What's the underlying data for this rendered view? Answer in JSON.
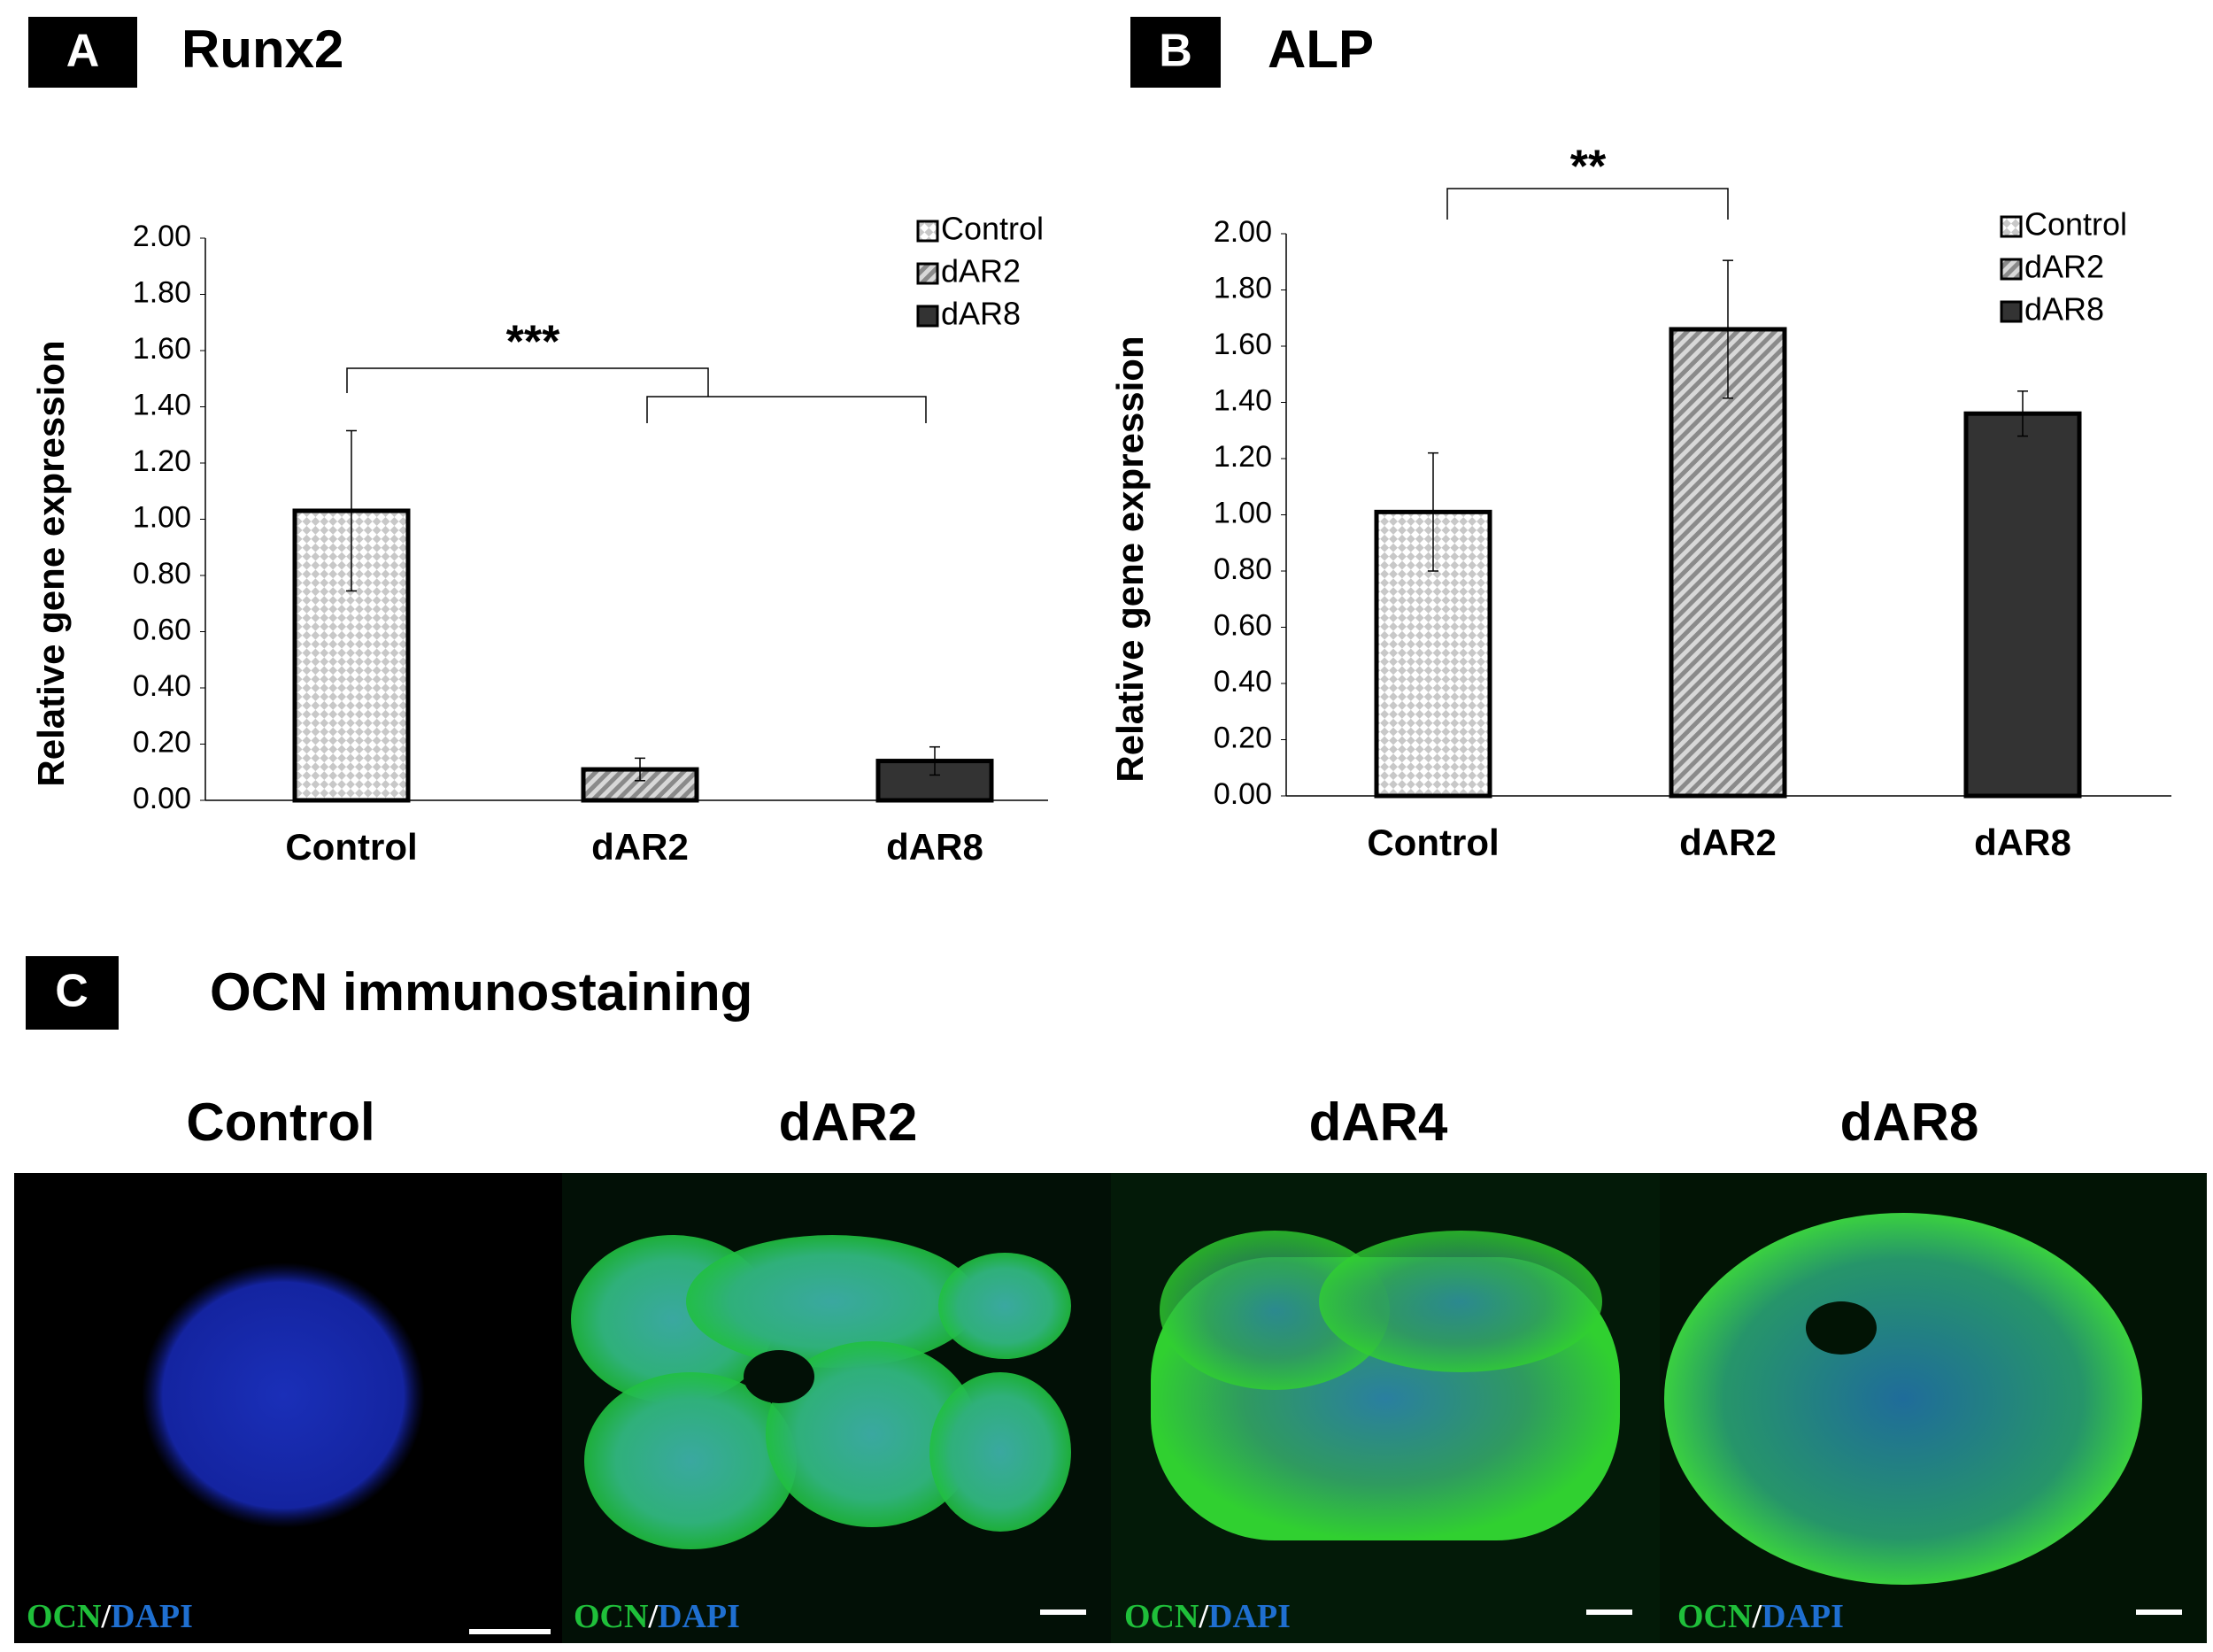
{
  "chart_data": [
    {
      "type": "bar",
      "panel": "A",
      "title": "Runx2",
      "ylabel": "Relative gene expression",
      "categories": [
        "Control",
        "dAR2",
        "dAR8"
      ],
      "values": [
        1.03,
        0.11,
        0.14
      ],
      "errors": [
        0.285,
        0.04,
        0.05
      ],
      "colors": [
        "#c8c8c8",
        "#a0a0a0",
        "#333333"
      ],
      "ylim": [
        0,
        2
      ],
      "yticks": [
        {
          "value": 0,
          "label": "0.00"
        },
        {
          "value": 0.2,
          "label": "0.20"
        },
        {
          "value": 0.4,
          "label": "0.40"
        },
        {
          "value": 0.6,
          "label": "0.60"
        },
        {
          "value": 0.8,
          "label": "0.80"
        },
        {
          "value": 1,
          "label": "1.00"
        },
        {
          "value": 1.2,
          "label": "1.20"
        },
        {
          "value": 1.4,
          "label": "1.40"
        },
        {
          "value": 1.6,
          "label": "1.60"
        },
        {
          "value": 1.8,
          "label": "1.80"
        },
        {
          "value": 2,
          "label": "2.00"
        }
      ],
      "legend": "upper right",
      "annotation": "***"
    },
    {
      "type": "bar",
      "panel": "B",
      "title": "ALP",
      "ylabel": "Relative gene expression",
      "categories": [
        "Control",
        "dAR2",
        "dAR8"
      ],
      "values": [
        1.01,
        1.66,
        1.36
      ],
      "errors": [
        0.21,
        0.245,
        0.08
      ],
      "colors": [
        "#c8c8c8",
        "#a0a0a0",
        "#333333"
      ],
      "ylim": [
        0,
        2
      ],
      "yticks": [
        {
          "value": 0,
          "label": "0.00"
        },
        {
          "value": 0.2,
          "label": "0.20"
        },
        {
          "value": 0.4,
          "label": "0.40"
        },
        {
          "value": 0.6,
          "label": "0.60"
        },
        {
          "value": 0.8,
          "label": "0.80"
        },
        {
          "value": 1,
          "label": "1.00"
        },
        {
          "value": 1.2,
          "label": "1.20"
        },
        {
          "value": 1.4,
          "label": "1.40"
        },
        {
          "value": 1.6,
          "label": "1.60"
        },
        {
          "value": 1.8,
          "label": "1.80"
        },
        {
          "value": 2,
          "label": "2.00"
        }
      ],
      "legend": "upper right",
      "annotation": "**"
    }
  ],
  "panel_c": {
    "panel": "C",
    "title": "OCN immunostaining",
    "images": [
      {
        "title": "Control",
        "stain": [
          "OCN",
          "/",
          "DAPI"
        ]
      },
      {
        "title": "dAR2",
        "stain": [
          "OCN",
          "/",
          "DAPI"
        ]
      },
      {
        "title": "dAR4",
        "stain": [
          "OCN",
          "/",
          "DAPI"
        ]
      },
      {
        "title": "dAR8",
        "stain": [
          "OCN",
          "/",
          "DAPI"
        ]
      }
    ]
  }
}
